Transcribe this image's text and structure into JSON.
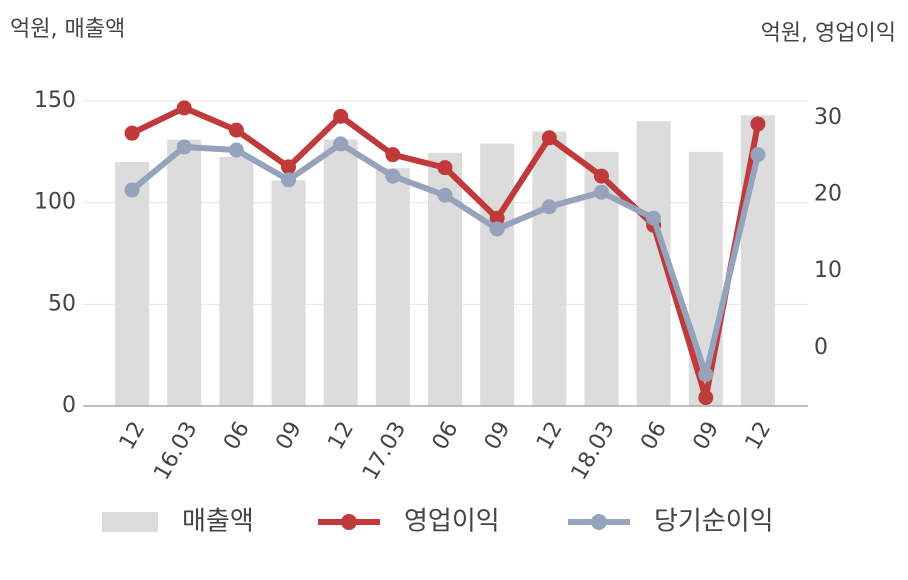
{
  "chart_data": {
    "type": "bar-line",
    "y_axis_label": "억원, 매출액",
    "y2_axis_label": "억원, 영업이익",
    "categories": [
      "12",
      "16.03",
      "06",
      "09",
      "12",
      "17.03",
      "06",
      "09",
      "12",
      "18.03",
      "06",
      "09",
      "12"
    ],
    "series": [
      {
        "name": "매출액",
        "type": "bar",
        "color": "#dcdcdc",
        "values": [
          120,
          131,
          122.5,
          111,
          131,
          117,
          124.5,
          129,
          135,
          125,
          140,
          125,
          143
        ]
      },
      {
        "name": "영업이익",
        "type": "line",
        "axis": "y2",
        "color": "#c0393b",
        "values": [
          28.0,
          31.3,
          28.4,
          23.6,
          30.2,
          25.2,
          23.5,
          16.9,
          27.4,
          22.4,
          16.0,
          -6.5,
          29.2
        ]
      },
      {
        "name": "당기순이익",
        "type": "line",
        "axis": "y2",
        "color": "#96a3bc",
        "values": [
          20.6,
          26.2,
          25.8,
          21.9,
          26.6,
          22.4,
          19.9,
          15.5,
          18.4,
          20.3,
          16.9,
          -3.5,
          25.2
        ]
      }
    ],
    "ylim": [
      0,
      150
    ],
    "yticks": [
      0,
      50,
      100,
      150
    ],
    "y2lim": [
      -7.6,
      32.2
    ],
    "y2ticks": [
      0,
      10,
      20,
      30
    ],
    "grid": true,
    "legend": "bottom"
  }
}
